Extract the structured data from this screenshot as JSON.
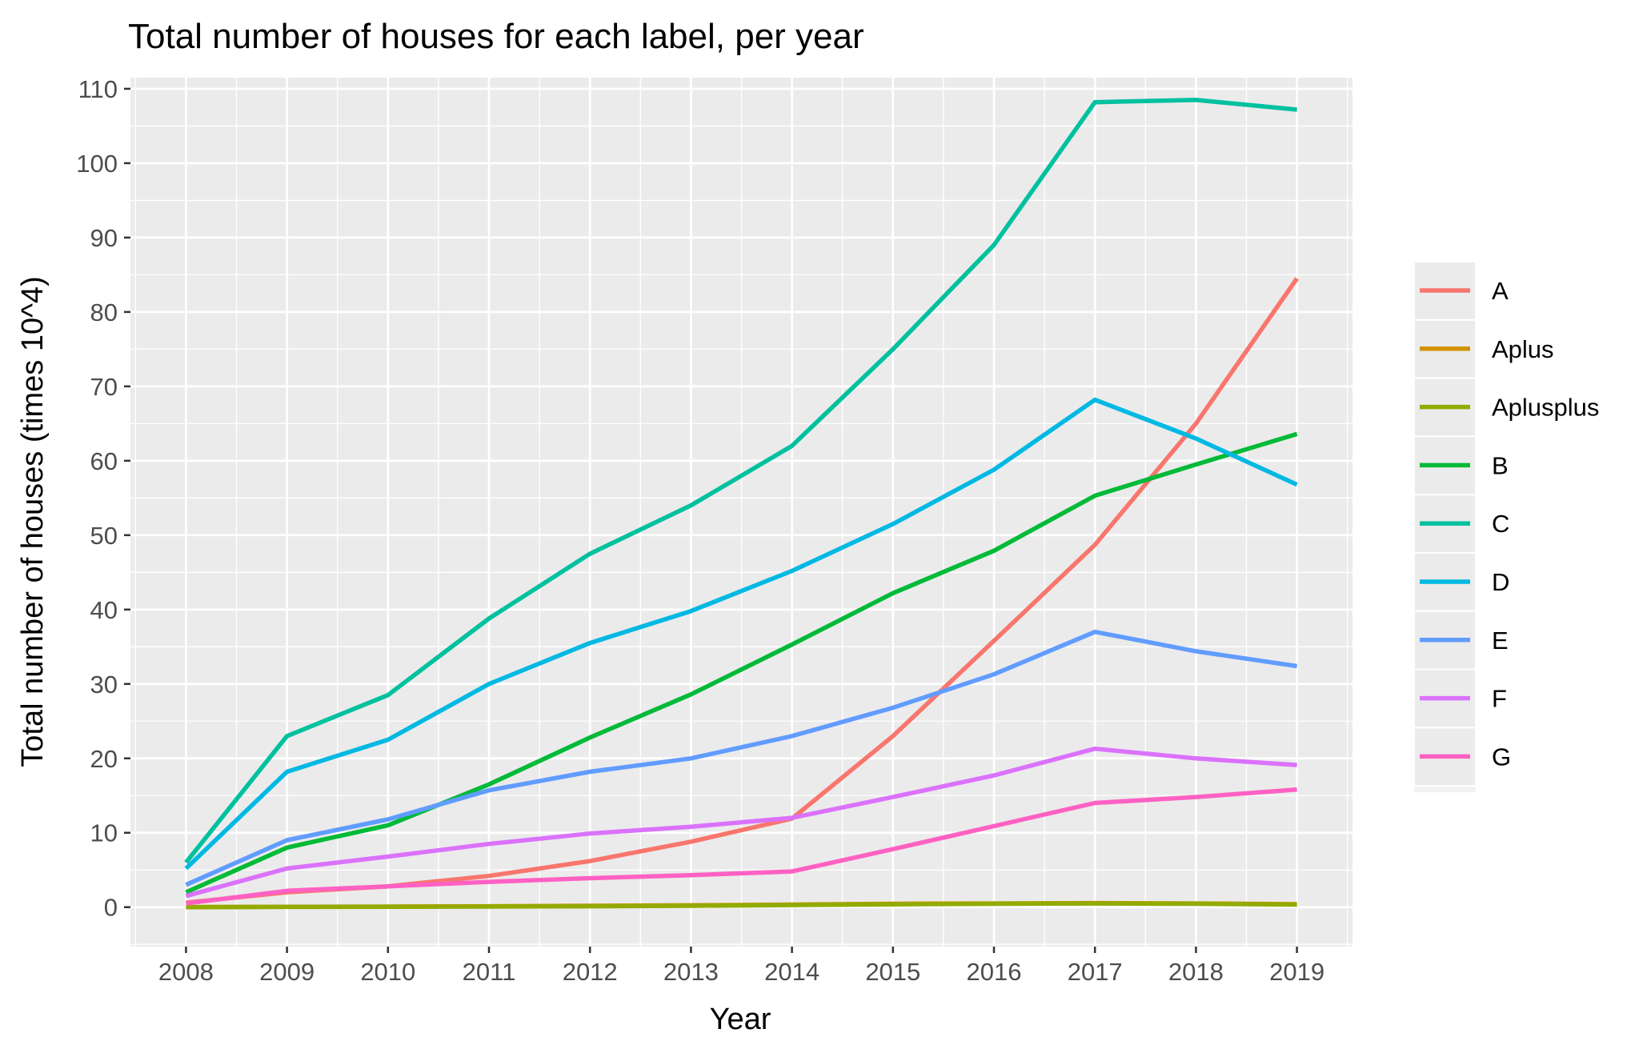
{
  "chart_data": {
    "type": "line",
    "title": "Total number of houses for each label, per year",
    "xlabel": "Year",
    "ylabel": "Total number of houses (times 10^4)",
    "x": [
      2008,
      2009,
      2010,
      2011,
      2012,
      2013,
      2014,
      2015,
      2016,
      2017,
      2018,
      2019
    ],
    "xlim": [
      2007.45,
      2019.55
    ],
    "ylim": [
      -5.3,
      111.5
    ],
    "yticks": [
      0,
      10,
      20,
      30,
      40,
      50,
      60,
      70,
      80,
      90,
      100,
      110
    ],
    "background": "#EBEBEB",
    "grid": true,
    "legend_position": "right",
    "series": [
      {
        "name": "A",
        "color": "#F8766D",
        "values": [
          0.6,
          2.0,
          2.8,
          4.2,
          6.2,
          8.8,
          11.9,
          23.0,
          35.8,
          48.7,
          65.0,
          84.5
        ]
      },
      {
        "name": "Aplus",
        "color": "#D39200",
        "values": [
          0.0,
          0.05,
          0.08,
          0.12,
          0.18,
          0.25,
          0.35,
          0.45,
          0.5,
          0.55,
          0.5,
          0.4
        ]
      },
      {
        "name": "Aplusplus",
        "color": "#93AA00",
        "values": [
          0.0,
          0.03,
          0.05,
          0.08,
          0.12,
          0.18,
          0.28,
          0.38,
          0.45,
          0.5,
          0.45,
          0.35
        ]
      },
      {
        "name": "B",
        "color": "#00BA38",
        "values": [
          2.0,
          8.0,
          11.0,
          16.5,
          22.8,
          28.6,
          35.3,
          42.2,
          47.9,
          55.3,
          59.5,
          63.6
        ]
      },
      {
        "name": "C",
        "color": "#00C19F",
        "values": [
          6.0,
          23.0,
          28.5,
          38.8,
          47.5,
          54.0,
          62.0,
          75.0,
          89.0,
          108.2,
          108.5,
          107.2
        ]
      },
      {
        "name": "D",
        "color": "#00B9E3",
        "values": [
          5.2,
          18.2,
          22.5,
          30.0,
          35.5,
          39.8,
          45.2,
          51.5,
          58.8,
          68.2,
          63.0,
          56.8
        ]
      },
      {
        "name": "E",
        "color": "#619CFF",
        "values": [
          3.0,
          9.0,
          11.8,
          15.7,
          18.2,
          20.0,
          23.0,
          26.8,
          31.3,
          37.0,
          34.4,
          32.4
        ]
      },
      {
        "name": "F",
        "color": "#DB72FB",
        "values": [
          1.5,
          5.2,
          6.8,
          8.5,
          9.9,
          10.8,
          12.0,
          14.8,
          17.7,
          21.3,
          20.0,
          19.1
        ]
      },
      {
        "name": "G",
        "color": "#FF61C3",
        "values": [
          0.5,
          2.2,
          2.8,
          3.4,
          3.9,
          4.3,
          4.8,
          7.8,
          10.9,
          14.0,
          14.8,
          15.8
        ]
      }
    ]
  }
}
